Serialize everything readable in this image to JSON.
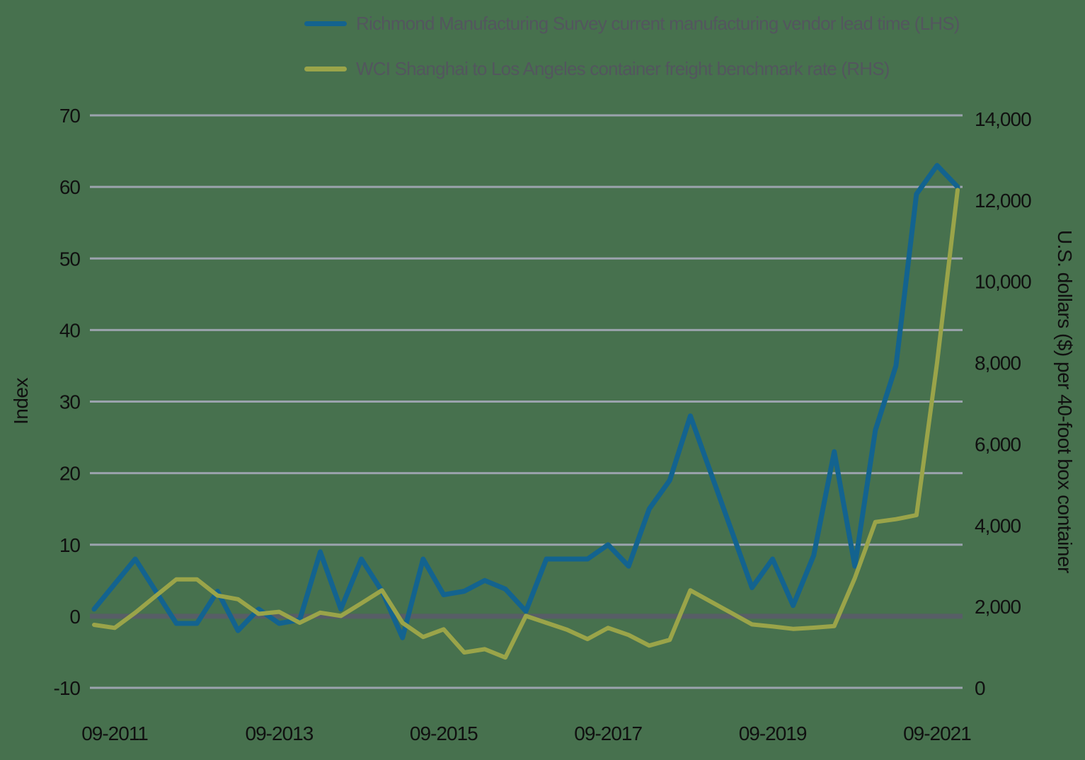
{
  "colors": {
    "background": "#47714e",
    "series_lhs": "#13638f",
    "series_rhs": "#9aa449",
    "gridline": "#9ba3ad",
    "zero_line": "#575e66",
    "tick_text": "#101010",
    "axis_title_text": "#101010",
    "legend_text": "#53565e"
  },
  "legend": {
    "items": [
      {
        "label": "Richmond Manufacturing Survey current manufacturing vendor lead time (LHS)",
        "color": "#13638f"
      },
      {
        "label": "WCI Shanghai to Los Angeles container freight benchmark rate (RHS)",
        "color": "#9aa449"
      }
    ]
  },
  "left_axis": {
    "title": "Index",
    "ticks": [
      {
        "value": 70,
        "label": "70"
      },
      {
        "value": 60,
        "label": "60"
      },
      {
        "value": 50,
        "label": "50"
      },
      {
        "value": 40,
        "label": "40"
      },
      {
        "value": 30,
        "label": "30"
      },
      {
        "value": 20,
        "label": "20"
      },
      {
        "value": 10,
        "label": "10"
      },
      {
        "value": 0,
        "label": "0"
      },
      {
        "value": -10,
        "label": "-10"
      }
    ]
  },
  "right_axis": {
    "title": "U.S. dollars ($) per 40-foot box container",
    "ticks": [
      {
        "value": 14000,
        "label": "14,000"
      },
      {
        "value": 12000,
        "label": "12,000"
      },
      {
        "value": 10000,
        "label": "10,000"
      },
      {
        "value": 8000,
        "label": "8,000"
      },
      {
        "value": 6000,
        "label": "6,000"
      },
      {
        "value": 4000,
        "label": "4,000"
      },
      {
        "value": 2000,
        "label": "2,000"
      },
      {
        "value": 0,
        "label": "0"
      }
    ]
  },
  "x_axis": {
    "ticks": [
      {
        "label": "09-2011",
        "index": 1
      },
      {
        "label": "09-2013",
        "index": 9
      },
      {
        "label": "09-2015",
        "index": 17
      },
      {
        "label": "09-2017",
        "index": 25
      },
      {
        "label": "09-2019",
        "index": 33
      },
      {
        "label": "09-2021",
        "index": 41
      }
    ]
  },
  "chart_data": {
    "type": "line",
    "title": "",
    "grid": "horizontal",
    "left_axis_label": "Index",
    "right_axis_label": "U.S. dollars ($) per 40-foot box container",
    "left_axis_range": [
      -10,
      70
    ],
    "right_axis_range": [
      0,
      14000
    ],
    "x": [
      "06-2011",
      "09-2011",
      "12-2011",
      "03-2012",
      "06-2012",
      "09-2012",
      "12-2012",
      "03-2013",
      "06-2013",
      "09-2013",
      "12-2013",
      "03-2014",
      "06-2014",
      "09-2014",
      "12-2014",
      "03-2015",
      "06-2015",
      "09-2015",
      "12-2015",
      "03-2016",
      "06-2016",
      "09-2016",
      "12-2016",
      "03-2017",
      "06-2017",
      "09-2017",
      "12-2017",
      "03-2018",
      "06-2018",
      "09-2018",
      "12-2018",
      "03-2019",
      "06-2019",
      "09-2019",
      "12-2019",
      "03-2020",
      "06-2020",
      "09-2020",
      "12-2020",
      "03-2021",
      "06-2021",
      "09-2021",
      "12-2021"
    ],
    "series": [
      {
        "name": "Richmond Manufacturing Survey current manufacturing vendor lead time (LHS)",
        "axis": "left",
        "color": "#13638f",
        "values": [
          1,
          4.5,
          8,
          3.5,
          -1,
          -1,
          3.5,
          -2,
          1,
          -1,
          -0.5,
          9,
          1,
          8,
          3.5,
          -3,
          8,
          3,
          3.5,
          5,
          3.8,
          0.7,
          8,
          8,
          8,
          10,
          7,
          15,
          19,
          28,
          20,
          12,
          4,
          8,
          1.5,
          8.5,
          23,
          7,
          26,
          35,
          59,
          63,
          60
        ]
      },
      {
        "name": "WCI Shanghai to Los Angeles container freight benchmark rate (RHS)",
        "axis": "right",
        "color": "#9aa449",
        "values": [
          1550,
          1475,
          1850,
          2260,
          2670,
          2670,
          2270,
          2180,
          1820,
          1870,
          1600,
          1850,
          1770,
          2080,
          2400,
          1600,
          1250,
          1440,
          870,
          950,
          746,
          1770,
          1600,
          1430,
          1200,
          1475,
          1300,
          1040,
          1180,
          2400,
          2120,
          1840,
          1560,
          1510,
          1450,
          1480,
          1520,
          2700,
          4080,
          4150,
          4250,
          8000,
          12250
        ]
      }
    ]
  }
}
